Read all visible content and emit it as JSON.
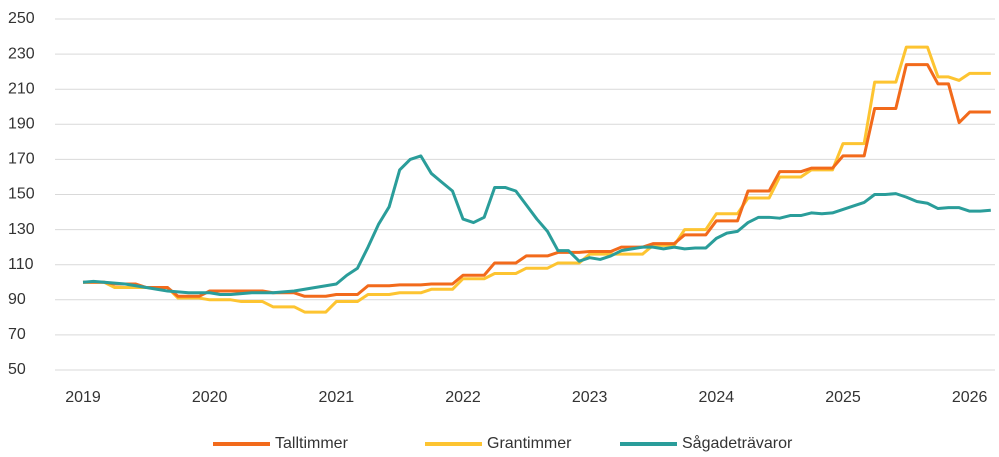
{
  "chart_data": {
    "type": "line",
    "x": [
      2019,
      2019.083,
      2019.167,
      2019.25,
      2019.333,
      2019.417,
      2019.5,
      2019.583,
      2019.667,
      2019.75,
      2019.833,
      2019.917,
      2020,
      2020.083,
      2020.167,
      2020.25,
      2020.333,
      2020.417,
      2020.5,
      2020.583,
      2020.667,
      2020.75,
      2020.833,
      2020.917,
      2021,
      2021.083,
      2021.167,
      2021.25,
      2021.333,
      2021.417,
      2021.5,
      2021.583,
      2021.667,
      2021.75,
      2021.833,
      2021.917,
      2022,
      2022.083,
      2022.167,
      2022.25,
      2022.333,
      2022.417,
      2022.5,
      2022.583,
      2022.667,
      2022.75,
      2022.833,
      2022.917,
      2023,
      2023.083,
      2023.167,
      2023.25,
      2023.333,
      2023.417,
      2023.5,
      2023.583,
      2023.667,
      2023.75,
      2023.833,
      2023.917,
      2024,
      2024.083,
      2024.167,
      2024.25,
      2024.333,
      2024.417,
      2024.5,
      2024.583,
      2024.667,
      2024.75,
      2024.833,
      2024.917,
      2025,
      2025.083,
      2025.167,
      2025.25,
      2025.333,
      2025.417,
      2025.5,
      2025.583,
      2025.667,
      2025.75,
      2025.833,
      2025.917,
      2026,
      2026.083,
      2026.167
    ],
    "series": [
      {
        "name": "Grantimmer",
        "color": "#fdc431",
        "values": [
          100,
          100,
          100,
          97,
          97,
          97,
          97,
          97,
          97,
          91,
          91,
          91,
          90,
          90,
          90,
          89,
          89,
          89,
          86,
          86,
          86,
          83,
          83,
          83,
          89,
          89,
          89,
          93,
          93,
          93,
          94,
          94,
          94,
          96,
          96,
          96,
          102,
          102,
          102,
          105,
          105,
          105,
          108,
          108,
          108,
          111,
          111,
          111,
          116,
          116,
          116,
          116,
          116,
          116,
          121,
          121,
          121,
          130,
          130,
          130,
          139,
          139,
          139,
          148,
          148,
          148,
          160,
          160,
          160,
          164,
          164,
          164,
          179,
          179,
          179,
          214,
          214,
          214,
          234,
          234,
          234,
          217,
          217,
          215,
          219,
          219,
          219
        ]
      },
      {
        "name": "Talltimmer",
        "color": "#f26a1b",
        "values": [
          100,
          100,
          100,
          99,
          99,
          99,
          97,
          97,
          97,
          92,
          92,
          92,
          95,
          95,
          95,
          95,
          95,
          95,
          94,
          94,
          94,
          92,
          92,
          92,
          93,
          93,
          93,
          98,
          98,
          98,
          98.5,
          98.5,
          98.5,
          99,
          99,
          99,
          104,
          104,
          104,
          111,
          111,
          111,
          115,
          115,
          115,
          117,
          117,
          117,
          117.5,
          117.5,
          117.5,
          120,
          120,
          120,
          122,
          122,
          122,
          127,
          127,
          127,
          135,
          135,
          135,
          152,
          152,
          152,
          163,
          163,
          163,
          165,
          165,
          165,
          172,
          172,
          172,
          199,
          199,
          199,
          224,
          224,
          224,
          213,
          213,
          191,
          197,
          197,
          197
        ]
      },
      {
        "name": "Sågadeträvaror",
        "color": "#2a9d9a",
        "values": [
          100,
          100.5,
          100,
          99.5,
          99,
          98,
          97,
          96,
          95,
          94.5,
          94,
          94,
          94,
          93,
          93,
          93.5,
          94,
          94,
          94,
          94.5,
          95,
          96,
          97,
          98,
          99,
          104,
          108,
          120,
          133,
          143,
          164,
          170,
          172,
          162,
          157,
          152,
          136,
          134,
          137,
          154,
          154,
          152,
          144,
          136,
          129,
          118,
          118,
          112,
          114,
          113,
          115,
          118,
          119,
          120,
          120,
          119,
          120,
          119,
          119.5,
          119.5,
          125,
          128,
          129,
          134,
          137,
          137,
          136.5,
          138,
          138,
          139.5,
          139,
          139.5,
          141.5,
          143.5,
          145.5,
          150,
          150,
          150.5,
          148.5,
          146,
          145,
          142,
          142.5,
          142.5,
          140.5,
          140.5,
          141
        ]
      }
    ],
    "legend_order": [
      1,
      0,
      2
    ],
    "xlim": [
      2019,
      2026.2
    ],
    "xticks": [
      2019,
      2020,
      2021,
      2022,
      2023,
      2024,
      2025,
      2026
    ],
    "ylim": [
      50,
      250
    ],
    "yticks": [
      50,
      70,
      90,
      110,
      130,
      150,
      170,
      190,
      210,
      230,
      250
    ],
    "grid": true
  }
}
